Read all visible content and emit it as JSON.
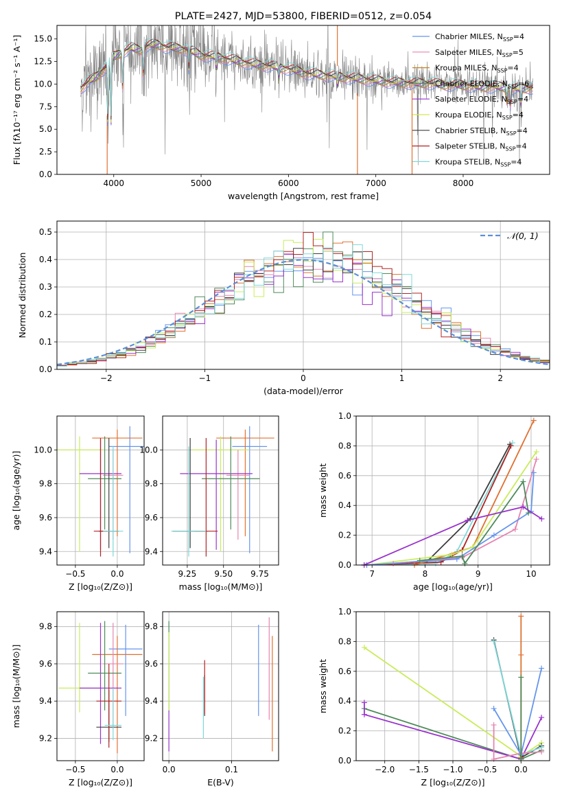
{
  "chart_data": [
    {
      "id": "spectrum",
      "type": "line",
      "title": "PLATE=2427, MJD=53800, FIBERID=0512, z=0.054",
      "xlabel": "wavelength [Angstrom, rest frame]",
      "ylabel": "Flux [fλ10⁻¹⁷ erg cm⁻² s⁻¹ A⁻¹]",
      "xlim": [
        3350,
        8990
      ],
      "ylim": [
        0,
        16.5
      ],
      "xticks": [
        4000,
        5000,
        6000,
        7000,
        8000
      ],
      "yticks": [
        0.0,
        2.5,
        5.0,
        7.5,
        10.0,
        12.5,
        15.0
      ],
      "legend_position": "upper right",
      "legend": [
        {
          "label": "Chabrier MILES, N",
          "sub": "SSP",
          "tail": "=4",
          "color": "#6495ed"
        },
        {
          "label": "Salpeter MILES, N",
          "sub": "SSP",
          "tail": "=5",
          "color": "#e584b0"
        },
        {
          "label": "Kroupa MILES, N",
          "sub": "SSP",
          "tail": "=4",
          "color": "#c8821e"
        },
        {
          "label": "Chabrier ELODIE, N",
          "sub": "SSP",
          "tail": "=6",
          "color": "#4e8a5a"
        },
        {
          "label": "Salpeter ELODIE, N",
          "sub": "SSP",
          "tail": "=4",
          "color": "#9932cc"
        },
        {
          "label": "Kroupa ELODIE, N",
          "sub": "SSP",
          "tail": "=4",
          "color": "#d4e84a"
        },
        {
          "label": "Chabrier STELIB, N",
          "sub": "SSP",
          "tail": "=4",
          "color": "#3c3c3c"
        },
        {
          "label": "Salpeter STELIB, N",
          "sub": "SSP",
          "tail": "=4",
          "color": "#b22222"
        },
        {
          "label": "Kroupa STELIB, N",
          "sub": "SSP",
          "tail": "=4",
          "color": "#7fd8d8"
        }
      ],
      "data_color": "#808080",
      "continuum": [
        [
          3620,
          9.5
        ],
        [
          3700,
          10.2
        ],
        [
          3800,
          10.8
        ],
        [
          3900,
          11.8
        ],
        [
          4000,
          13.0
        ],
        [
          4100,
          13.6
        ],
        [
          4200,
          14.0
        ],
        [
          4300,
          13.8
        ],
        [
          4400,
          14.3
        ],
        [
          4500,
          14.4
        ],
        [
          4600,
          14.1
        ],
        [
          4700,
          14.0
        ],
        [
          4800,
          13.9
        ],
        [
          4900,
          13.6
        ],
        [
          5000,
          13.2
        ],
        [
          5200,
          13.0
        ],
        [
          5400,
          12.6
        ],
        [
          5600,
          12.2
        ],
        [
          5800,
          12.0
        ],
        [
          6000,
          11.7
        ],
        [
          6200,
          11.2
        ],
        [
          6400,
          11.0
        ],
        [
          6600,
          10.8
        ],
        [
          6800,
          10.6
        ],
        [
          7000,
          10.4
        ],
        [
          7200,
          10.2
        ],
        [
          7400,
          10.1
        ],
        [
          7600,
          10.1
        ],
        [
          7800,
          9.9
        ],
        [
          8000,
          9.9
        ],
        [
          8200,
          9.7
        ],
        [
          8400,
          9.7
        ],
        [
          8600,
          9.5
        ],
        [
          8800,
          9.6
        ]
      ]
    },
    {
      "id": "residuals",
      "type": "histogram",
      "xlabel": "(data-model)/error",
      "ylabel": "Normed distribution",
      "xlim": [
        -2.5,
        2.5
      ],
      "ylim": [
        0,
        0.54
      ],
      "xticks": [
        -2,
        -1,
        0,
        1,
        2
      ],
      "yticks": [
        0.0,
        0.1,
        0.2,
        0.3,
        0.4,
        0.5
      ],
      "bin_width": 0.1,
      "bin_start": -2.5,
      "legend": [
        {
          "label": "𝒩(0, 1)",
          "color": "#5b8fd6"
        }
      ],
      "legend_position": "upper right",
      "series_colors": [
        "#6495ed",
        "#e584b0",
        "#e07030",
        "#4e8a5a",
        "#9932cc",
        "#c8ec5a",
        "#3c3c3c",
        "#b22222",
        "#7fd8d8"
      ]
    },
    {
      "id": "z-age",
      "type": "errorbar",
      "xlabel": "Z [log₁₀(Z/Z⊙)]",
      "ylabel": "age  [log₁₀(age/yr)]",
      "xlim": [
        -0.72,
        0.32
      ],
      "ylim": [
        9.32,
        10.2
      ],
      "xticks": [
        -0.5,
        0.0
      ],
      "yticks": [
        9.4,
        9.6,
        9.8,
        10.0
      ],
      "points": [
        {
          "color": "#6495ed",
          "x": 0.15,
          "xerr": 0.25,
          "y": 10.02,
          "yerr": [
            0.63,
            0.12
          ]
        },
        {
          "color": "#e07030",
          "x": 0.0,
          "xerr": 0.3,
          "y": 10.07,
          "yerr": [
            0.58,
            0.05
          ]
        },
        {
          "color": "#c8ec5a",
          "x": -0.45,
          "xerr": 0.3,
          "y": 10.0,
          "yerr": [
            0.6,
            0.08
          ]
        },
        {
          "color": "#e584b0",
          "x": -0.05,
          "xerr": 0.12,
          "y": 9.85,
          "yerr": [
            0.38,
            0.15
          ]
        },
        {
          "color": "#9932cc",
          "x": -0.2,
          "xerr": 0.25,
          "y": 9.86,
          "yerr": [
            0.45,
            0.2
          ]
        },
        {
          "color": "#4e8a5a",
          "x": -0.15,
          "xerr": 0.2,
          "y": 9.83,
          "yerr": [
            0.3,
            0.25
          ]
        },
        {
          "color": "#3c3c3c",
          "x": -0.1,
          "xerr": 0.12,
          "y": 9.52,
          "yerr": [
            0.1,
            0.55
          ]
        },
        {
          "color": "#b22222",
          "x": -0.2,
          "xerr": 0.08,
          "y": 9.52,
          "yerr": [
            0.15,
            0.55
          ]
        },
        {
          "color": "#7fd8d8",
          "x": -0.05,
          "xerr": 0.12,
          "y": 9.52,
          "yerr": [
            0.15,
            0.5
          ]
        }
      ]
    },
    {
      "id": "mass-age",
      "type": "errorbar",
      "xlabel": "mass [log₁₀(M/M⊙)]",
      "ylabel": "",
      "xlim": [
        9.08,
        9.88
      ],
      "ylim": [
        9.32,
        10.2
      ],
      "xticks": [
        9.25,
        9.5,
        9.75
      ],
      "yticks": [
        9.4,
        9.6,
        9.8,
        10.0
      ],
      "points": [
        {
          "color": "#6495ed",
          "x": 9.68,
          "xerr": 0.12,
          "y": 10.02,
          "yerr": [
            0.63,
            0.12
          ]
        },
        {
          "color": "#e07030",
          "x": 9.65,
          "xerr": 0.2,
          "y": 10.07,
          "yerr": [
            0.58,
            0.05
          ]
        },
        {
          "color": "#c8ec5a",
          "x": 9.48,
          "xerr": 0.2,
          "y": 10.0,
          "yerr": [
            0.6,
            0.08
          ]
        },
        {
          "color": "#e584b0",
          "x": 9.6,
          "xerr": 0.08,
          "y": 9.85,
          "yerr": [
            0.38,
            0.15
          ]
        },
        {
          "color": "#9932cc",
          "x": 9.45,
          "xerr": 0.25,
          "y": 9.86,
          "yerr": [
            0.45,
            0.2
          ]
        },
        {
          "color": "#4e8a5a",
          "x": 9.55,
          "xerr": 0.2,
          "y": 9.83,
          "yerr": [
            0.3,
            0.25
          ]
        },
        {
          "color": "#3c3c3c",
          "x": 9.27,
          "xerr": 0.12,
          "y": 9.52,
          "yerr": [
            0.1,
            0.55
          ]
        },
        {
          "color": "#b22222",
          "x": 9.38,
          "xerr": 0.08,
          "y": 9.52,
          "yerr": [
            0.15,
            0.55
          ]
        },
        {
          "color": "#7fd8d8",
          "x": 9.26,
          "xerr": 0.12,
          "y": 9.52,
          "yerr": [
            0.15,
            0.5
          ]
        }
      ]
    },
    {
      "id": "age-weight",
      "type": "line",
      "xlabel": "age  [log₁₀(age/yr)]",
      "ylabel": "mass weight",
      "xlim": [
        6.7,
        10.35
      ],
      "ylim": [
        0,
        1.0
      ],
      "xticks": [
        7,
        8,
        9,
        10
      ],
      "yticks": [
        0.0,
        0.2,
        0.4,
        0.6,
        0.8,
        1.0
      ],
      "series": [
        {
          "color": "#3c3c3c",
          "points": [
            [
              6.85,
              0.0
            ],
            [
              8.0,
              0.01
            ],
            [
              8.85,
              0.31
            ],
            [
              9.6,
              0.81
            ]
          ]
        },
        {
          "color": "#7fd8d8",
          "points": [
            [
              6.85,
              0.0
            ],
            [
              8.2,
              0.01
            ],
            [
              8.6,
              0.09
            ],
            [
              9.65,
              0.82
            ]
          ]
        },
        {
          "color": "#b22222",
          "points": [
            [
              6.9,
              0.0
            ],
            [
              8.3,
              0.02
            ],
            [
              8.7,
              0.1
            ],
            [
              9.62,
              0.8
            ]
          ]
        },
        {
          "color": "#e07030",
          "points": [
            [
              7.8,
              0.0
            ],
            [
              8.9,
              0.12
            ],
            [
              10.05,
              0.97
            ]
          ]
        },
        {
          "color": "#c8ec5a",
          "points": [
            [
              6.9,
              0.0
            ],
            [
              8.5,
              0.07
            ],
            [
              8.9,
              0.12
            ],
            [
              10.1,
              0.76
            ]
          ]
        },
        {
          "color": "#e584b0",
          "points": [
            [
              6.9,
              0.0
            ],
            [
              7.4,
              0.01
            ],
            [
              8.7,
              0.05
            ],
            [
              9.7,
              0.24
            ],
            [
              10.1,
              0.71
            ]
          ]
        },
        {
          "color": "#6495ed",
          "points": [
            [
              6.9,
              0.0
            ],
            [
              8.6,
              0.04
            ],
            [
              9.3,
              0.2
            ],
            [
              10.0,
              0.36
            ],
            [
              10.05,
              0.62
            ]
          ]
        },
        {
          "color": "#4e8a5a",
          "points": [
            [
              7.9,
              0.03
            ],
            [
              8.7,
              0.06
            ],
            [
              8.75,
              0.01
            ],
            [
              9.85,
              0.56
            ],
            [
              9.95,
              0.35
            ]
          ]
        },
        {
          "color": "#9932cc",
          "points": [
            [
              6.85,
              0.0
            ],
            [
              8.8,
              0.3
            ],
            [
              9.85,
              0.39
            ],
            [
              10.2,
              0.31
            ]
          ]
        }
      ]
    },
    {
      "id": "z-mass",
      "type": "errorbar",
      "xlabel": "Z [log₁₀(Z/Z⊙)]",
      "ylabel": "mass [log₁₀(M/M⊙)]",
      "xlim": [
        -0.72,
        0.32
      ],
      "ylim": [
        9.08,
        9.88
      ],
      "xticks": [
        -0.5,
        0.0
      ],
      "yticks": [
        9.2,
        9.4,
        9.6,
        9.8
      ],
      "points": [
        {
          "color": "#6495ed",
          "x": 0.1,
          "xerr": 0.2,
          "y": 9.68,
          "yerr": [
            0.36,
            0.13
          ]
        },
        {
          "color": "#e07030",
          "x": 0.0,
          "xerr": 0.3,
          "y": 9.65,
          "yerr": [
            0.53,
            0.1
          ]
        },
        {
          "color": "#c8ec5a",
          "x": -0.45,
          "xerr": 0.25,
          "y": 9.47,
          "yerr": [
            0.13,
            0.35
          ]
        },
        {
          "color": "#e584b0",
          "x": -0.05,
          "xerr": 0.12,
          "y": 9.6,
          "yerr": [
            0.35,
            0.22
          ]
        },
        {
          "color": "#9932cc",
          "x": -0.2,
          "xerr": 0.25,
          "y": 9.47,
          "yerr": [
            0.3,
            0.35
          ]
        },
        {
          "color": "#4e8a5a",
          "x": -0.15,
          "xerr": 0.2,
          "y": 9.55,
          "yerr": [
            0.2,
            0.28
          ]
        },
        {
          "color": "#3c3c3c",
          "x": -0.1,
          "xerr": 0.15,
          "y": 9.26,
          "yerr": [
            0.08,
            0.2
          ]
        },
        {
          "color": "#b22222",
          "x": -0.1,
          "xerr": 0.15,
          "y": 9.4,
          "yerr": [
            0.25,
            0.2
          ]
        },
        {
          "color": "#7fd8d8",
          "x": -0.05,
          "xerr": 0.1,
          "y": 9.27,
          "yerr": [
            0.08,
            0.2
          ]
        }
      ]
    },
    {
      "id": "ebv-mass",
      "type": "errorbar",
      "xlabel": "E(B-V)",
      "ylabel": "",
      "xlim": [
        -0.01,
        0.175
      ],
      "ylim": [
        9.08,
        9.88
      ],
      "xticks": [
        0.0,
        0.1
      ],
      "yticks": [
        9.2,
        9.4,
        9.6,
        9.8
      ],
      "points": [
        {
          "color": "#4e8a5a",
          "x": 0.0,
          "y": 9.55,
          "yerr": [
            0.2,
            0.28
          ]
        },
        {
          "color": "#c8ec5a",
          "x": 0.0,
          "y": 9.47,
          "yerr": [
            0.13,
            0.3
          ]
        },
        {
          "color": "#9932cc",
          "x": 0.0,
          "y": 9.25,
          "yerr": [
            0.12,
            0.1
          ]
        },
        {
          "color": "#7fd8d8",
          "x": 0.055,
          "y": 9.38,
          "yerr": [
            0.18,
            0.15
          ]
        },
        {
          "color": "#3c3c3c",
          "x": 0.057,
          "y": 9.42,
          "yerr": [
            0.1,
            0.12
          ]
        },
        {
          "color": "#b22222",
          "x": 0.057,
          "y": 9.47,
          "yerr": [
            0.14,
            0.15
          ]
        },
        {
          "color": "#6495ed",
          "x": 0.143,
          "y": 9.56,
          "yerr": [
            0.24,
            0.25
          ]
        },
        {
          "color": "#e584b0",
          "x": 0.16,
          "y": 9.58,
          "yerr": [
            0.28,
            0.27
          ]
        },
        {
          "color": "#e07030",
          "x": 0.165,
          "y": 9.44,
          "yerr": [
            0.31,
            0.31
          ]
        }
      ]
    },
    {
      "id": "z-weight",
      "type": "line",
      "xlabel": "Z [log₁₀(Z/Z⊙)]",
      "ylabel": "mass weight",
      "xlim": [
        -2.42,
        0.42
      ],
      "ylim": [
        0,
        1.0
      ],
      "xticks": [
        -2.0,
        -1.5,
        -1.0,
        -0.5,
        0.0
      ],
      "yticks": [
        0.0,
        0.2,
        0.4,
        0.6,
        0.8,
        1.0
      ],
      "series": [
        {
          "color": "#c8ec5a",
          "points": [
            [
              -2.3,
              0.76
            ],
            [
              0.0,
              0.03
            ],
            [
              0.3,
              0.12
            ]
          ]
        },
        {
          "color": "#4e8a5a",
          "points": [
            [
              -2.3,
              0.35
            ],
            [
              0.0,
              0.01
            ],
            [
              0.3,
              0.07
            ]
          ]
        },
        {
          "color": "#9932cc",
          "points": [
            [
              -2.3,
              0.39
            ],
            [
              -2.3,
              0.31
            ],
            [
              0.0,
              0.01
            ],
            [
              0.3,
              0.29
            ]
          ]
        },
        {
          "color": "#3c3c3c",
          "points": [
            [
              -0.4,
              0.81
            ],
            [
              0.0,
              0.02
            ],
            [
              0.3,
              0.1
            ]
          ]
        },
        {
          "color": "#7fd8d8",
          "points": [
            [
              -0.4,
              0.8
            ],
            [
              0.0,
              0.04
            ],
            [
              0.3,
              0.09
            ]
          ]
        },
        {
          "color": "#e584b0",
          "points": [
            [
              -0.4,
              0.24
            ],
            [
              -0.4,
              0.01
            ],
            [
              0.0,
              0.05
            ],
            [
              0.3,
              0.06
            ]
          ]
        },
        {
          "color": "#6495ed",
          "points": [
            [
              -0.4,
              0.35
            ],
            [
              0.0,
              0.04
            ],
            [
              0.3,
              0.62
            ]
          ]
        },
        {
          "color": "#e07030",
          "points": [
            [
              0.0,
              0.97
            ],
            [
              0.0,
              0.71
            ],
            [
              0.0,
              0.02
            ]
          ]
        },
        {
          "color": "#4e8a5a",
          "points": [
            [
              0.0,
              0.56
            ],
            [
              0.0,
              0.01
            ]
          ]
        }
      ]
    }
  ]
}
